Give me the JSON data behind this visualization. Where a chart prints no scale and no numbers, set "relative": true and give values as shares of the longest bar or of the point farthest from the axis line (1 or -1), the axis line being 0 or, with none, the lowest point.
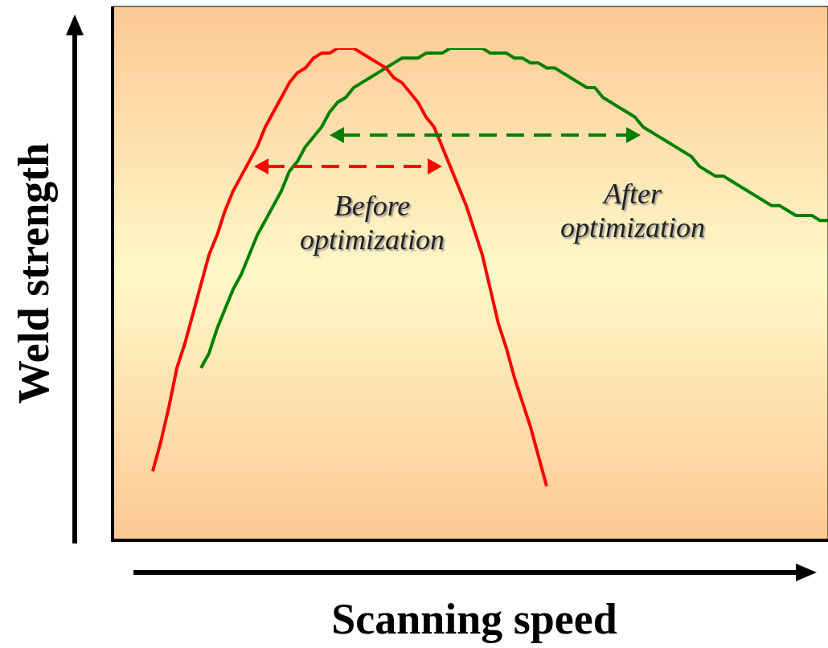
{
  "chart_data": {
    "type": "line",
    "relative": true,
    "xlabel": "Scanning speed",
    "ylabel": "Weld strength",
    "categories": [
      null,
      null,
      null,
      null,
      null,
      null,
      null,
      null,
      null,
      null,
      null,
      null,
      null,
      null,
      null,
      null,
      null,
      null,
      null,
      null,
      null,
      null,
      null,
      null,
      null,
      null,
      null,
      null,
      null,
      null,
      null,
      null,
      null,
      null,
      null,
      null,
      null,
      null,
      null,
      null,
      null,
      null,
      null,
      null,
      null,
      null,
      null,
      null,
      null,
      null,
      null,
      null,
      null,
      null,
      null,
      null,
      null,
      null,
      null,
      null,
      null,
      null,
      null,
      null,
      null,
      null,
      null,
      null,
      null,
      null,
      null,
      null,
      null,
      null,
      null,
      null,
      null,
      null,
      null,
      null,
      null,
      null,
      null,
      null,
      null,
      null,
      null,
      null,
      null,
      null
    ],
    "marker": "none",
    "legend": "top",
    "series": [
      {
        "name": "Before optimization",
        "color": "#ff0000",
        "values": [
          null,
          null,
          null,
          null,
          null,
          0.14,
          0.2,
          0.27,
          0.35,
          0.4,
          0.46,
          0.52,
          0.58,
          0.62,
          0.67,
          0.71,
          0.74,
          0.77,
          0.8,
          0.84,
          0.87,
          0.9,
          0.93,
          0.95,
          0.96,
          0.98,
          0.99,
          0.99,
          1.0,
          1.0,
          1.0,
          0.99,
          0.98,
          0.97,
          0.96,
          0.94,
          0.93,
          0.91,
          0.89,
          0.86,
          0.84,
          0.8,
          0.76,
          0.72,
          0.68,
          0.63,
          0.58,
          0.51,
          0.44,
          0.39,
          0.33,
          0.28,
          0.23,
          0.17,
          0.11,
          null,
          null,
          null,
          null,
          null,
          null,
          null,
          null,
          null,
          null,
          null,
          null,
          null,
          null,
          null,
          null,
          null,
          null,
          null,
          null,
          null,
          null,
          null,
          null,
          null,
          null,
          null,
          null,
          null,
          null,
          null,
          null,
          null,
          null,
          null
        ]
      },
      {
        "name": "After optimization",
        "color": "#008000",
        "values": [
          null,
          null,
          null,
          null,
          null,
          null,
          null,
          null,
          null,
          null,
          null,
          0.35,
          0.38,
          0.43,
          0.47,
          0.51,
          0.54,
          0.58,
          0.62,
          0.65,
          0.68,
          0.71,
          0.75,
          0.77,
          0.8,
          0.82,
          0.84,
          0.87,
          0.89,
          0.9,
          0.92,
          0.93,
          0.94,
          0.95,
          0.96,
          0.97,
          0.98,
          0.98,
          0.98,
          0.99,
          0.99,
          0.99,
          1.0,
          1.0,
          1.0,
          1.0,
          1.0,
          0.99,
          0.99,
          0.99,
          0.98,
          0.98,
          0.97,
          0.97,
          0.96,
          0.96,
          0.95,
          0.94,
          0.93,
          0.92,
          0.92,
          0.9,
          0.89,
          0.88,
          0.87,
          0.86,
          0.84,
          0.83,
          0.82,
          0.81,
          0.8,
          0.79,
          0.78,
          0.76,
          0.75,
          0.74,
          0.74,
          0.73,
          0.72,
          0.71,
          0.7,
          0.69,
          0.68,
          0.68,
          0.67,
          0.66,
          0.66,
          0.66,
          0.65,
          0.65
        ]
      }
    ]
  }
}
